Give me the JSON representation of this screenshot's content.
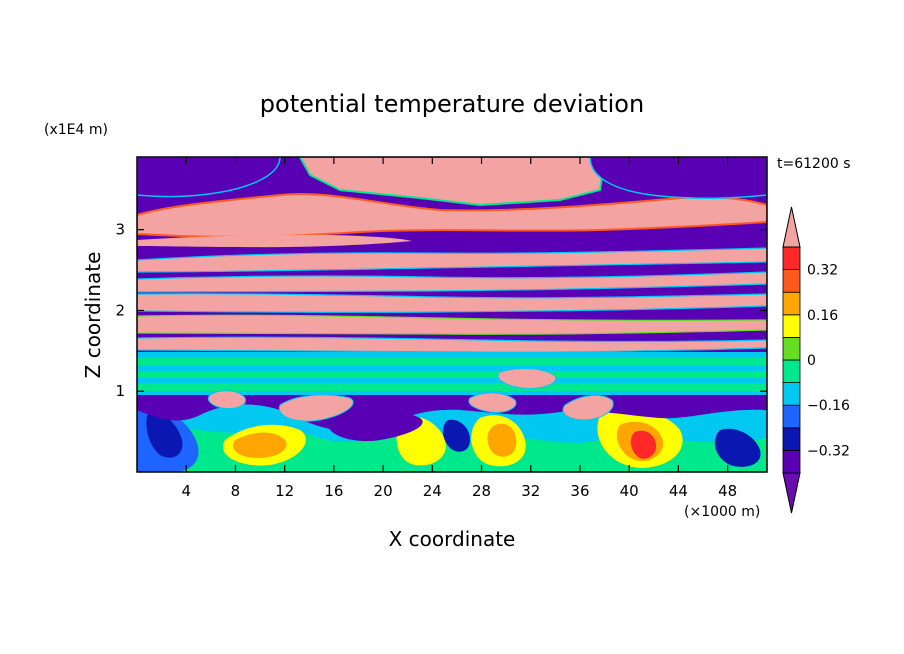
{
  "chart_data": {
    "type": "heatmap",
    "title": "potential temperature deviation",
    "xlabel": "X coordinate",
    "ylabel": "Z coordinate",
    "x_unit": "(×1000 m)",
    "y_unit": "(x1E4 m)",
    "time_label": "t=61200 s",
    "xlim": [
      0,
      51.2
    ],
    "ylim": [
      0,
      3.9
    ],
    "x_ticks": [
      4,
      8,
      12,
      16,
      20,
      24,
      28,
      32,
      36,
      40,
      44,
      48
    ],
    "y_ticks": [
      1,
      2,
      3
    ],
    "colorbar": {
      "tick_labels": [
        "0.32",
        "0.16",
        "0",
        "−0.16",
        "−0.32"
      ],
      "tick_values": [
        0.32,
        0.16,
        0,
        -0.16,
        -0.32
      ],
      "levels": [
        -0.4,
        -0.32,
        -0.24,
        -0.16,
        -0.08,
        0,
        0.08,
        0.16,
        0.24,
        0.32,
        0.4
      ],
      "colors": [
        "#6a0dad",
        "#5a00b4",
        "#0a17b0",
        "#1e64ff",
        "#00c8f0",
        "#00e88c",
        "#66dd22",
        "#ffff00",
        "#ffa500",
        "#ff5a1e",
        "#ff2828",
        "#f4a3a3"
      ]
    }
  }
}
